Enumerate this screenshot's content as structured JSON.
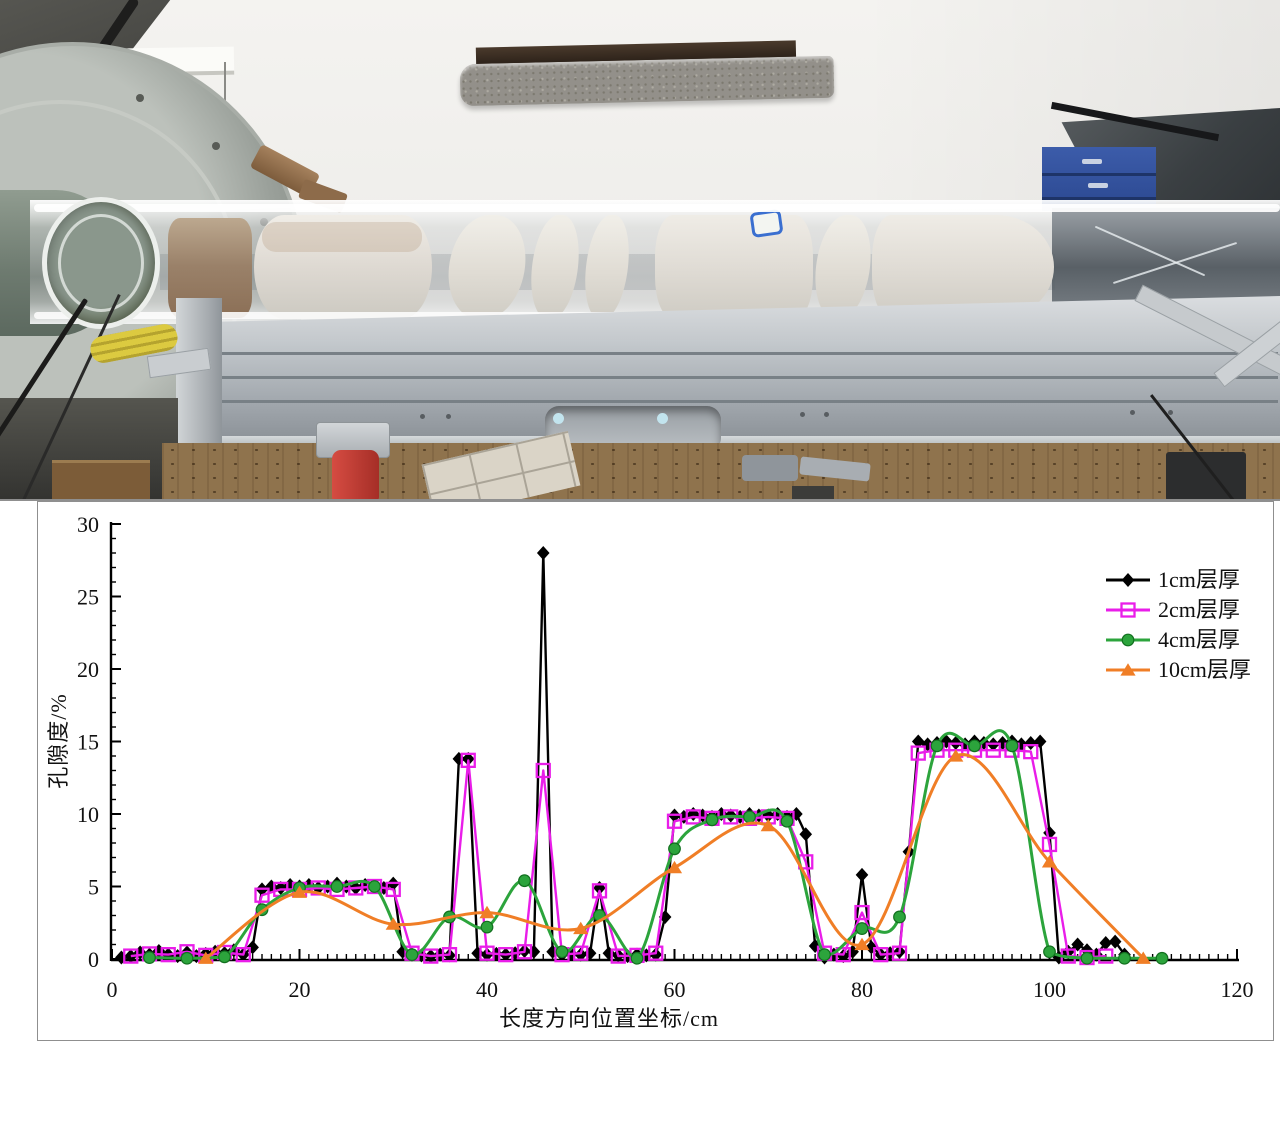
{
  "figure": {
    "photo": {
      "subject": "experiment-apparatus-photo",
      "colors": {
        "wall": "#efeeea",
        "machine_gray": "#9aa09a",
        "port_green_gray": "#6e7b70",
        "granite_sill": "#93908a",
        "window_frame": "#2a211c",
        "cabinet_blue": "#2f4d96",
        "rail_silver": "#b0b6ba",
        "bench_wood": "#8f734d",
        "tile_floor": "#dad4c7",
        "sample_translucent": "#e6e3dc",
        "sample_brown_sleeve": "#9a8169",
        "label_tag_border": "#3a6fd0",
        "clamp_red": "#c0392f",
        "cable_yellow": "#d9c83e"
      }
    }
  },
  "chart_data": {
    "type": "line",
    "title": "",
    "xlabel": "长度方向位置坐标/cm",
    "ylabel": "孔隙度/%",
    "xlim": [
      0,
      120
    ],
    "ylim": [
      0,
      30
    ],
    "x_major_step": 20,
    "x_minor_step": 1,
    "y_major_step": 5,
    "y_minor_step": 1,
    "grid": false,
    "legend_position": "upper right",
    "axis_color": "#000000",
    "series": [
      {
        "name": "1cm层厚",
        "id": "1cm",
        "color": "#000000",
        "marker": "diamond",
        "marker_filled": true,
        "smooth": false,
        "points": [
          [
            1,
            0.1
          ],
          [
            2,
            0.2
          ],
          [
            3,
            0.45
          ],
          [
            4,
            0.3
          ],
          [
            5,
            0.55
          ],
          [
            6,
            0.3
          ],
          [
            7,
            0.2
          ],
          [
            8,
            0.45
          ],
          [
            9,
            0.2
          ],
          [
            10,
            0.35
          ],
          [
            11,
            0.5
          ],
          [
            12,
            0.4
          ],
          [
            13,
            0.6
          ],
          [
            14,
            0.3
          ],
          [
            15,
            0.8
          ],
          [
            16,
            4.8
          ],
          [
            17,
            5
          ],
          [
            18,
            4.9
          ],
          [
            19,
            5.1
          ],
          [
            20,
            5
          ],
          [
            21,
            5.1
          ],
          [
            22,
            4.9
          ],
          [
            23,
            5
          ],
          [
            24,
            5.2
          ],
          [
            25,
            5
          ],
          [
            26,
            4.9
          ],
          [
            27,
            5.1
          ],
          [
            28,
            5
          ],
          [
            29,
            4.9
          ],
          [
            30,
            5.2
          ],
          [
            31,
            0.5
          ],
          [
            32,
            0.3
          ],
          [
            33,
            0.25
          ],
          [
            34,
            0.2
          ],
          [
            35,
            0.3
          ],
          [
            36,
            0.25
          ],
          [
            37,
            13.8
          ],
          [
            38,
            13.8
          ],
          [
            39,
            0.4
          ],
          [
            40,
            0.3
          ],
          [
            41,
            0.35
          ],
          [
            42,
            0.3
          ],
          [
            43,
            0.4
          ],
          [
            44,
            0.55
          ],
          [
            45,
            0.5
          ],
          [
            46,
            28
          ],
          [
            47,
            0.5
          ],
          [
            48,
            0.3
          ],
          [
            49,
            0.35
          ],
          [
            50,
            0.3
          ],
          [
            51,
            0.4
          ],
          [
            52,
            4.9
          ],
          [
            53,
            0.4
          ],
          [
            54,
            0.25
          ],
          [
            55,
            0.2
          ],
          [
            56,
            0.3
          ],
          [
            57,
            0.25
          ],
          [
            58,
            0.3
          ],
          [
            59,
            2.9
          ],
          [
            60,
            9.9
          ],
          [
            61,
            9.8
          ],
          [
            62,
            10
          ],
          [
            63,
            9.9
          ],
          [
            64,
            9.8
          ],
          [
            65,
            10
          ],
          [
            66,
            9.9
          ],
          [
            67,
            9.8
          ],
          [
            68,
            10
          ],
          [
            69,
            9.9
          ],
          [
            70,
            9.9
          ],
          [
            71,
            10
          ],
          [
            72,
            9.8
          ],
          [
            73,
            10
          ],
          [
            74,
            8.6
          ],
          [
            75,
            0.9
          ],
          [
            76,
            0.1
          ],
          [
            77,
            0.3
          ],
          [
            78,
            0.2
          ],
          [
            79,
            0.5
          ],
          [
            80,
            5.8
          ],
          [
            81,
            0.8
          ],
          [
            82,
            0.3
          ],
          [
            83,
            0.4
          ],
          [
            84,
            0.5
          ],
          [
            85,
            7.4
          ],
          [
            86,
            15
          ],
          [
            87,
            14.8
          ],
          [
            88,
            14.9
          ],
          [
            89,
            15
          ],
          [
            90,
            14.9
          ],
          [
            91,
            14.8
          ],
          [
            92,
            15
          ],
          [
            93,
            14.9
          ],
          [
            94,
            14.8
          ],
          [
            95,
            14.9
          ],
          [
            96,
            15
          ],
          [
            97,
            14.8
          ],
          [
            98,
            14.9
          ],
          [
            99,
            15
          ],
          [
            100,
            8.7
          ],
          [
            101,
            0.1
          ],
          [
            102,
            0.5
          ],
          [
            103,
            1
          ],
          [
            104,
            0.6
          ],
          [
            105,
            0.3
          ],
          [
            106,
            1.1
          ],
          [
            107,
            1.2
          ],
          [
            108,
            0.3
          ]
        ]
      },
      {
        "name": "2cm层厚",
        "id": "2cm",
        "color": "#E91DE9",
        "marker": "square",
        "marker_filled": false,
        "smooth": false,
        "points": [
          [
            2,
            0.2
          ],
          [
            4,
            0.35
          ],
          [
            6,
            0.3
          ],
          [
            8,
            0.5
          ],
          [
            10,
            0.25
          ],
          [
            12,
            0.45
          ],
          [
            14,
            0.3
          ],
          [
            16,
            4.4
          ],
          [
            18,
            4.8
          ],
          [
            20,
            4.8
          ],
          [
            22,
            4.9
          ],
          [
            24,
            4.8
          ],
          [
            26,
            4.9
          ],
          [
            28,
            5
          ],
          [
            30,
            4.8
          ],
          [
            32,
            0.4
          ],
          [
            34,
            0.2
          ],
          [
            36,
            0.3
          ],
          [
            38,
            13.7
          ],
          [
            40,
            0.4
          ],
          [
            42,
            0.3
          ],
          [
            44,
            0.5
          ],
          [
            46,
            13
          ],
          [
            48,
            0.3
          ],
          [
            50,
            0.4
          ],
          [
            52,
            4.7
          ],
          [
            54,
            0.2
          ],
          [
            56,
            0.25
          ],
          [
            58,
            0.4
          ],
          [
            60,
            9.5
          ],
          [
            62,
            9.8
          ],
          [
            64,
            9.7
          ],
          [
            66,
            9.8
          ],
          [
            68,
            9.7
          ],
          [
            70,
            9.8
          ],
          [
            72,
            9.7
          ],
          [
            74,
            6.7
          ],
          [
            76,
            0.4
          ],
          [
            78,
            0.3
          ],
          [
            80,
            3.2
          ],
          [
            82,
            0.3
          ],
          [
            84,
            0.4
          ],
          [
            86,
            14.2
          ],
          [
            88,
            14.4
          ],
          [
            90,
            14.4
          ],
          [
            92,
            14.4
          ],
          [
            94,
            14.4
          ],
          [
            96,
            14.4
          ],
          [
            98,
            14.3
          ],
          [
            100,
            7.9
          ],
          [
            102,
            0.2
          ],
          [
            104,
            0.1
          ],
          [
            106,
            0.2
          ]
        ]
      },
      {
        "name": "4cm层厚",
        "id": "4cm",
        "color": "#2CA43C",
        "marker": "circle",
        "marker_filled": true,
        "smooth": true,
        "points": [
          [
            4,
            0.1
          ],
          [
            8,
            0.05
          ],
          [
            12,
            0.15
          ],
          [
            16,
            3.4
          ],
          [
            20,
            4.9
          ],
          [
            24,
            5
          ],
          [
            28,
            5
          ],
          [
            32,
            0.3
          ],
          [
            36,
            2.9
          ],
          [
            40,
            2.2
          ],
          [
            44,
            5.4
          ],
          [
            48,
            0.5
          ],
          [
            52,
            3
          ],
          [
            56,
            0.05
          ],
          [
            60,
            7.6
          ],
          [
            64,
            9.6
          ],
          [
            68,
            9.8
          ],
          [
            72,
            9.5
          ],
          [
            76,
            0.3
          ],
          [
            80,
            2.1
          ],
          [
            84,
            2.9
          ],
          [
            88,
            14.7
          ],
          [
            92,
            14.7
          ],
          [
            96,
            14.7
          ],
          [
            100,
            0.5
          ],
          [
            104,
            0.05
          ],
          [
            108,
            0.05
          ],
          [
            112,
            0.05
          ]
        ]
      },
      {
        "name": "10cm层厚",
        "id": "10cm",
        "color": "#F07E26",
        "marker": "triangle",
        "marker_filled": true,
        "smooth": true,
        "points": [
          [
            10,
            0.05
          ],
          [
            20,
            4.6
          ],
          [
            30,
            2.4
          ],
          [
            40,
            3.2
          ],
          [
            50,
            2.1
          ],
          [
            60,
            6.3
          ],
          [
            70,
            9.2
          ],
          [
            80,
            1
          ],
          [
            90,
            14
          ],
          [
            100,
            6.7
          ],
          [
            110,
            0.05
          ]
        ]
      }
    ]
  }
}
